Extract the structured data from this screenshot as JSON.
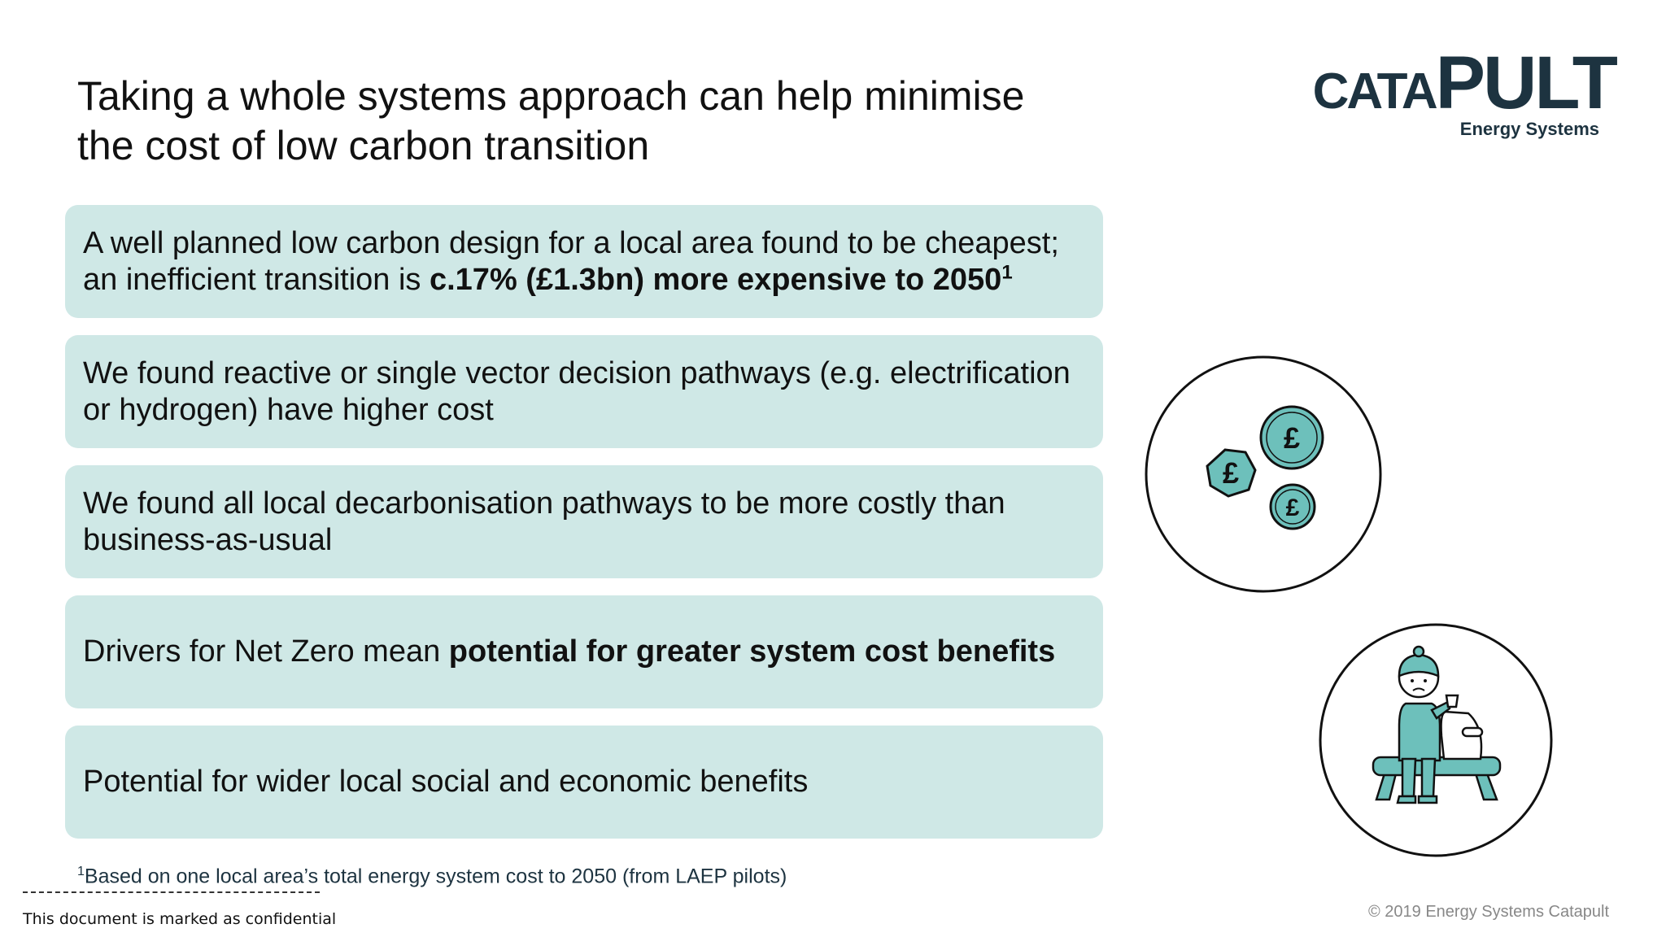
{
  "title": {
    "line1": "Taking a whole systems approach can help minimise",
    "line2": "the cost of low carbon transition"
  },
  "logo": {
    "word_part1": "CATA",
    "word_part2": "PULT",
    "subtitle": "Energy Systems"
  },
  "boxes": [
    {
      "line1": "A well planned low carbon design for a local area found to be cheapest;",
      "line2_plain": "an inefficient transition is ",
      "line2_bold": "c.17% (£1.3bn) more expensive to 2050",
      "line2_sup": "1"
    },
    {
      "line1": "We found reactive or single vector decision pathways (e.g. electrification",
      "line2": "or hydrogen) have higher cost"
    },
    {
      "line1": "We found all local decarbonisation pathways to be more costly than",
      "line2": "business-as-usual"
    },
    {
      "plain": "Drivers for Net Zero mean ",
      "bold": "potential for greater system cost benefits"
    },
    {
      "text": "Potential for wider local social and economic benefits"
    }
  ],
  "footnote": {
    "sup": "1",
    "text": "Based on one local area’s total energy system cost to 2050 (from LAEP pilots)"
  },
  "confidential": "This document is marked as confidential",
  "copyright": "© 2019 Energy Systems Catapult",
  "icons": {
    "coin_symbol": "£",
    "coins": "coins-icon",
    "person": "person-on-bench-icon"
  },
  "colors": {
    "box_background": "#cfe8e6",
    "icon_teal": "#6dc0bb",
    "logo_navy": "#1d3340"
  }
}
